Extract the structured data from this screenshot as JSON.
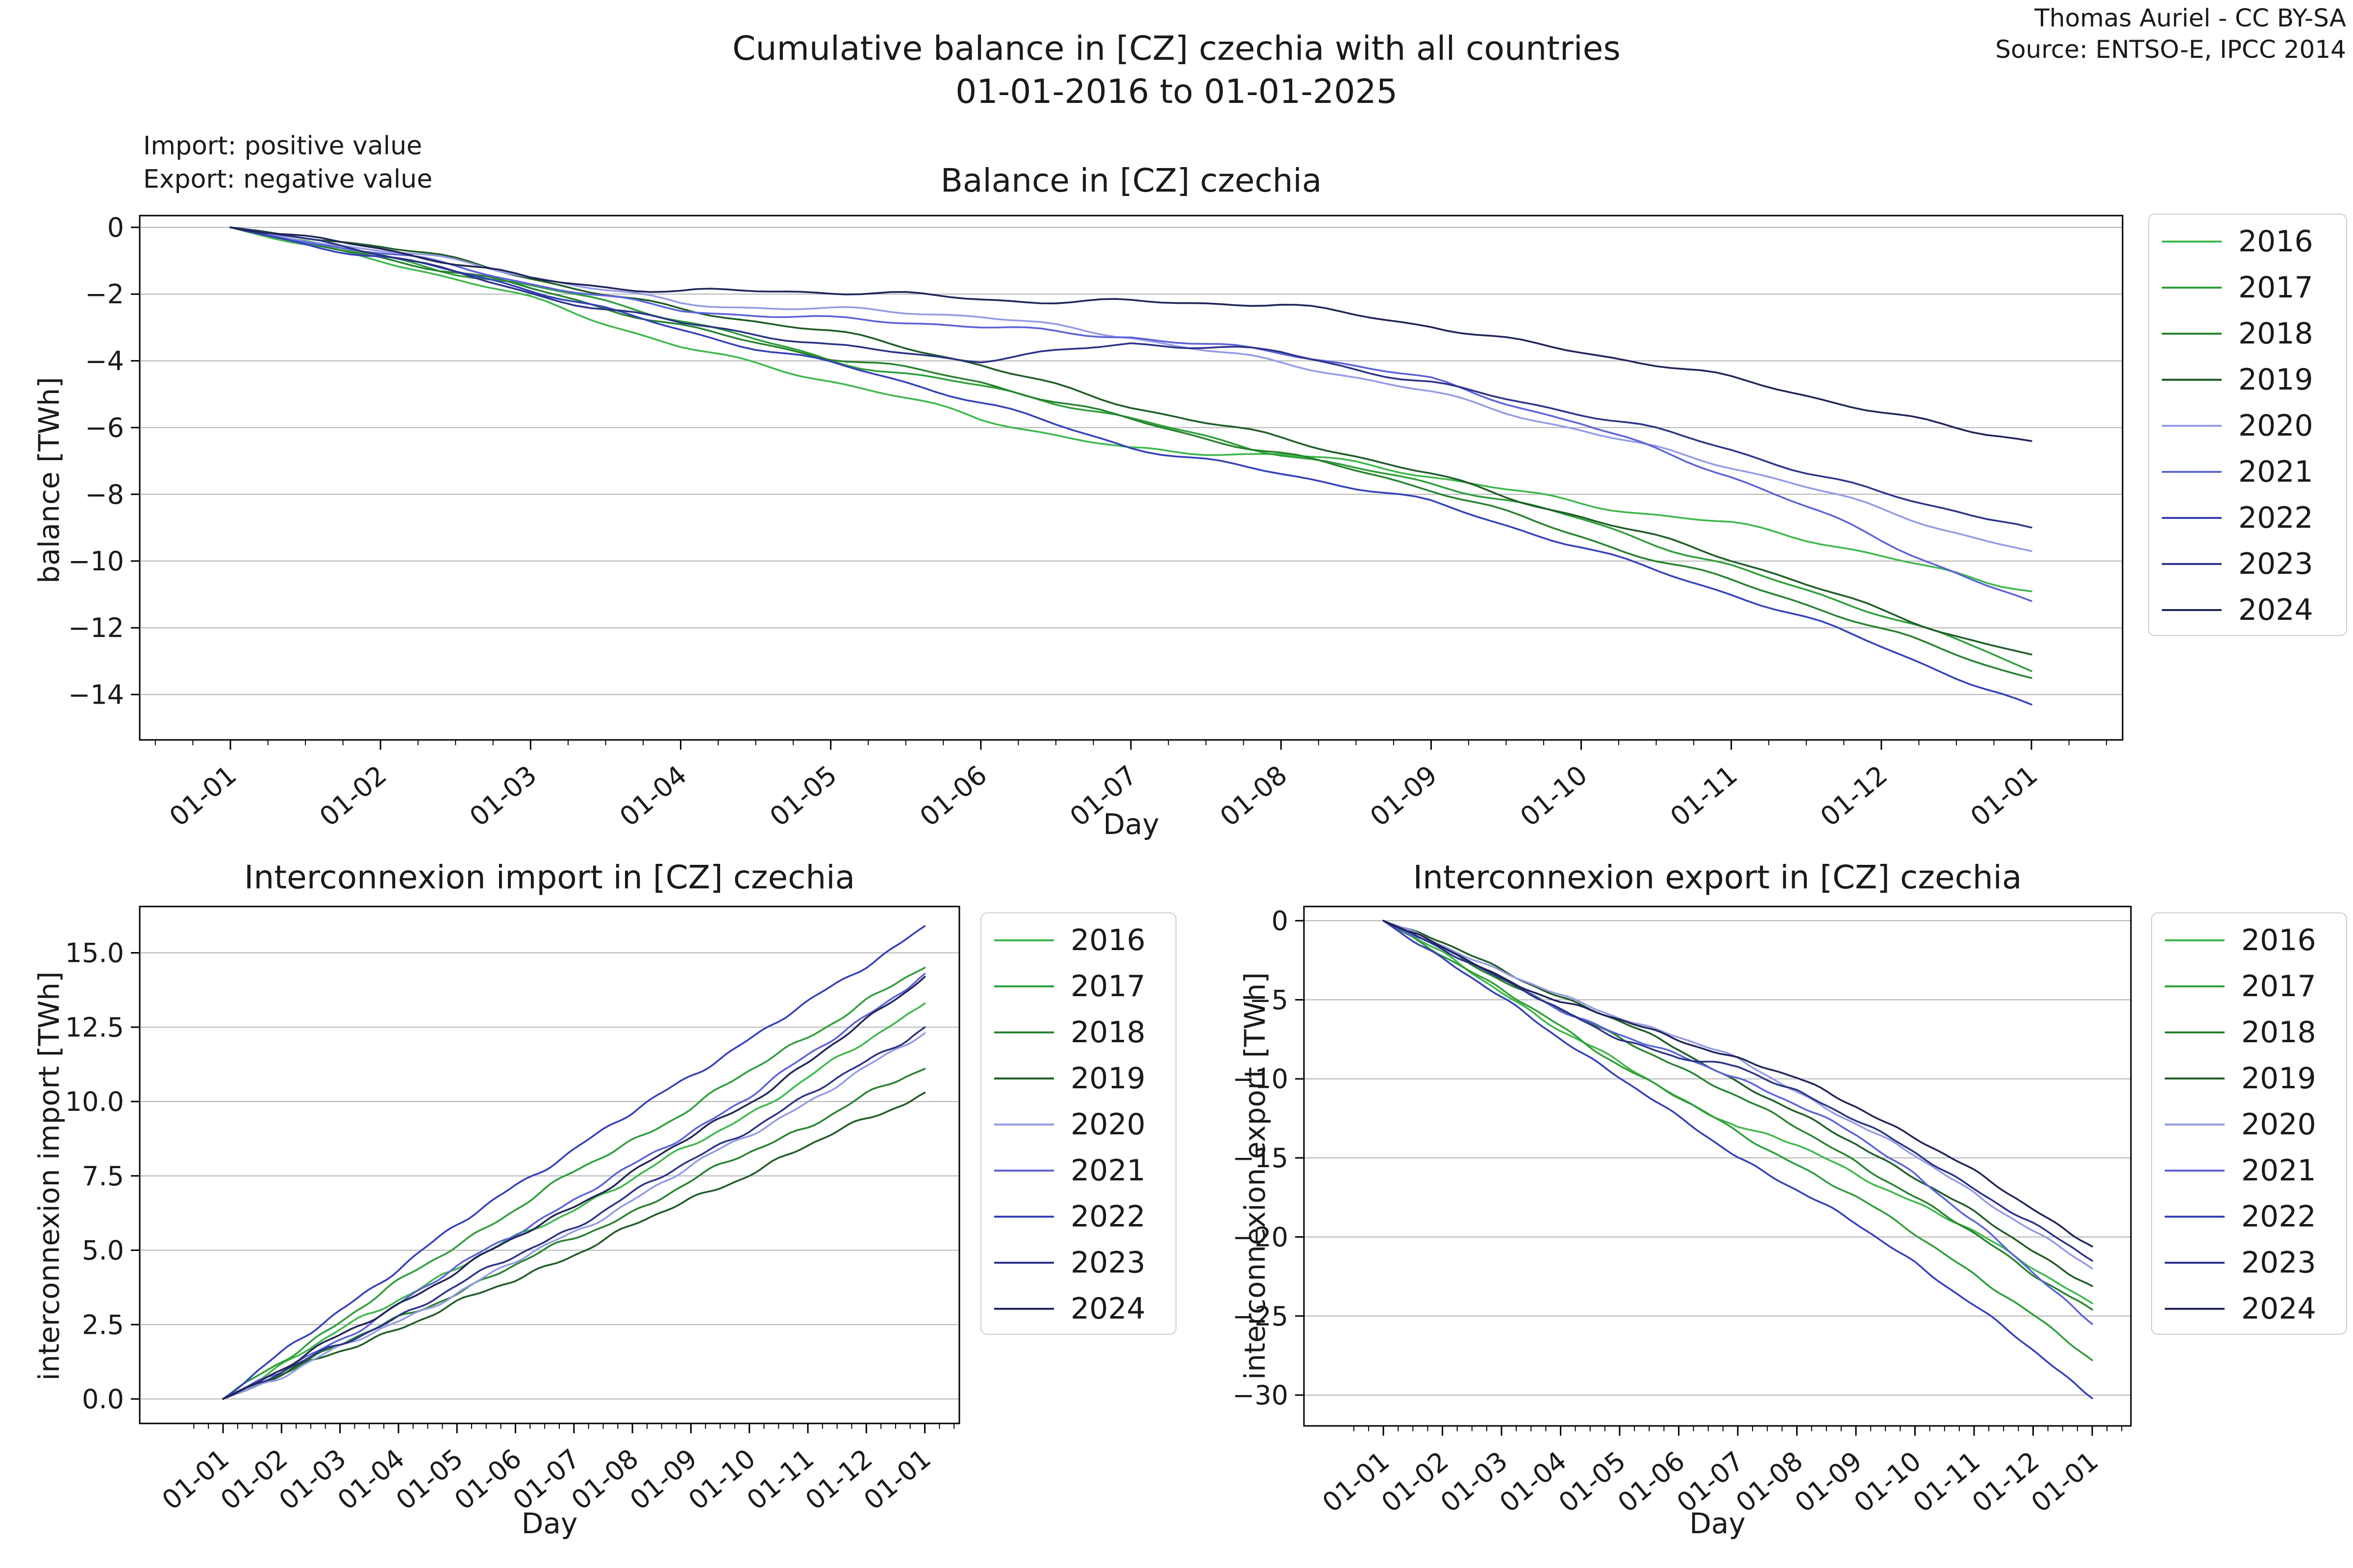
{
  "figure": {
    "suptitle_line1": "Cumulative balance in [CZ] czechia with all countries",
    "suptitle_line2": "01-01-2016 to 01-01-2025",
    "attribution_line1": "Thomas Auriel - CC BY-SA",
    "attribution_line2": "Source: ENTSO-E, IPCC 2014",
    "note_line1": "Import: positive value",
    "note_line2": "Export: negative value"
  },
  "legend_years": [
    "2016",
    "2017",
    "2018",
    "2019",
    "2020",
    "2021",
    "2022",
    "2023",
    "2024"
  ],
  "series_colors": {
    "2016": "#3eb84b",
    "2017": "#2f9e3a",
    "2018": "#27822f",
    "2019": "#1e5c26",
    "2020": "#949be4",
    "2021": "#5d63d8",
    "2022": "#3540bb",
    "2023": "#2b3387",
    "2024": "#202457"
  },
  "grid_color": "#b3b3b3",
  "spine_color": "#000000",
  "chart_data": [
    {
      "id": "balance",
      "type": "line",
      "title": "Balance in [CZ] czechia",
      "xlabel": "Day",
      "ylabel": "balance [TWh]",
      "x_tick_labels": [
        "01-01",
        "01-02",
        "01-03",
        "01-04",
        "01-05",
        "01-06",
        "01-07",
        "01-08",
        "01-09",
        "01-10",
        "01-11",
        "01-12",
        "01-01"
      ],
      "y_tick_values": [
        0,
        -2,
        -4,
        -6,
        -8,
        -10,
        -12,
        -14
      ],
      "y_tick_labels": [
        "0",
        "−2",
        "−4",
        "−6",
        "−8",
        "−10",
        "−12",
        "−14"
      ],
      "ylim": [
        -15.4,
        0.35
      ],
      "grid": "horizontal",
      "legend_position": "right",
      "x_unit": "months since 01-01",
      "series": [
        {
          "name": "2016",
          "values": [
            0,
            -1.0,
            -2.2,
            -3.5,
            -4.6,
            -5.8,
            -6.6,
            -6.8,
            -7.5,
            -8.2,
            -8.9,
            -9.9,
            -10.9
          ]
        },
        {
          "name": "2017",
          "values": [
            0,
            -0.8,
            -1.8,
            -2.8,
            -3.9,
            -4.8,
            -5.8,
            -6.7,
            -7.7,
            -8.8,
            -10.1,
            -11.6,
            -13.3
          ]
        },
        {
          "name": "2018",
          "values": [
            0,
            -0.9,
            -1.9,
            -2.9,
            -3.9,
            -4.7,
            -5.7,
            -6.8,
            -7.9,
            -9.2,
            -10.6,
            -12.1,
            -13.5
          ]
        },
        {
          "name": "2019",
          "values": [
            0,
            -0.6,
            -1.5,
            -2.4,
            -3.2,
            -4.1,
            -5.3,
            -6.4,
            -7.4,
            -8.6,
            -10.0,
            -11.5,
            -12.8
          ]
        },
        {
          "name": "2020",
          "values": [
            0,
            -0.7,
            -1.5,
            -2.2,
            -2.5,
            -2.7,
            -3.2,
            -4.1,
            -5.0,
            -6.0,
            -7.2,
            -8.5,
            -9.7
          ]
        },
        {
          "name": "2021",
          "values": [
            0,
            -0.8,
            -1.7,
            -2.4,
            -2.8,
            -3.0,
            -3.2,
            -3.8,
            -4.6,
            -5.8,
            -7.5,
            -9.4,
            -11.2
          ]
        },
        {
          "name": "2022",
          "values": [
            0,
            -0.9,
            -1.9,
            -3.0,
            -4.1,
            -5.3,
            -6.5,
            -7.4,
            -8.3,
            -9.5,
            -11.0,
            -12.6,
            -14.3
          ]
        },
        {
          "name": "2023",
          "values": [
            0,
            -0.8,
            -1.9,
            -2.9,
            -3.6,
            -3.9,
            -3.5,
            -3.8,
            -4.6,
            -5.6,
            -6.7,
            -7.9,
            -9.0
          ]
        },
        {
          "name": "2024",
          "values": [
            0,
            -0.7,
            -1.5,
            -1.9,
            -2.0,
            -2.1,
            -2.2,
            -2.4,
            -2.9,
            -3.7,
            -4.6,
            -5.5,
            -6.4
          ]
        }
      ]
    },
    {
      "id": "import",
      "type": "line",
      "title": "Interconnexion import in [CZ] czechia",
      "xlabel": "Day",
      "ylabel": "interconnexion import [TWh]",
      "x_tick_labels": [
        "01-01",
        "01-02",
        "01-03",
        "01-04",
        "01-05",
        "01-06",
        "01-07",
        "01-08",
        "01-09",
        "01-10",
        "01-11",
        "01-12",
        "01-01"
      ],
      "y_tick_values": [
        0,
        2.5,
        5.0,
        7.5,
        10.0,
        12.5,
        15.0
      ],
      "y_tick_labels": [
        "0.0",
        "2.5",
        "5.0",
        "7.5",
        "10.0",
        "12.5",
        "15.0"
      ],
      "ylim": [
        -0.8,
        16.5
      ],
      "grid": "horizontal",
      "legend_position": "right",
      "x_unit": "months since 01-01",
      "series": [
        {
          "name": "2016",
          "values": [
            0,
            1.1,
            2.3,
            3.4,
            4.4,
            5.4,
            6.4,
            7.4,
            8.5,
            9.6,
            10.8,
            12.0,
            13.3
          ]
        },
        {
          "name": "2017",
          "values": [
            0,
            1.3,
            2.6,
            3.9,
            5.2,
            6.4,
            7.6,
            8.7,
            9.8,
            11.0,
            12.2,
            13.4,
            14.5
          ]
        },
        {
          "name": "2018",
          "values": [
            0,
            0.9,
            1.8,
            2.7,
            3.6,
            4.5,
            5.4,
            6.3,
            7.3,
            8.3,
            9.2,
            10.2,
            11.1
          ]
        },
        {
          "name": "2019",
          "values": [
            0,
            0.8,
            1.6,
            2.4,
            3.2,
            4.0,
            4.9,
            5.8,
            6.7,
            7.6,
            8.5,
            9.4,
            10.3
          ]
        },
        {
          "name": "2020",
          "values": [
            0,
            0.8,
            1.7,
            2.6,
            3.6,
            4.6,
            5.6,
            6.7,
            7.8,
            8.9,
            10.0,
            11.1,
            12.3
          ]
        },
        {
          "name": "2021",
          "values": [
            0,
            0.9,
            2.0,
            3.2,
            4.4,
            5.6,
            6.7,
            7.8,
            9.0,
            10.2,
            11.5,
            12.9,
            14.3
          ]
        },
        {
          "name": "2022",
          "values": [
            0,
            1.5,
            3.0,
            4.4,
            5.8,
            7.2,
            8.4,
            9.6,
            10.9,
            12.1,
            13.3,
            14.6,
            15.9
          ]
        },
        {
          "name": "2023",
          "values": [
            0,
            0.9,
            1.8,
            2.8,
            3.8,
            4.8,
            5.8,
            6.9,
            8.0,
            9.1,
            10.2,
            11.3,
            12.5
          ]
        },
        {
          "name": "2024",
          "values": [
            0,
            1.0,
            2.1,
            3.2,
            4.3,
            5.4,
            6.5,
            7.6,
            8.8,
            10.0,
            11.3,
            12.7,
            14.2
          ]
        }
      ]
    },
    {
      "id": "export",
      "type": "line",
      "title": "Interconnexion export in [CZ] czechia",
      "xlabel": "Day",
      "ylabel": "interconnexion export [TWh]",
      "x_tick_labels": [
        "01-01",
        "01-02",
        "01-03",
        "01-04",
        "01-05",
        "01-06",
        "01-07",
        "01-08",
        "01-09",
        "01-10",
        "01-11",
        "01-12",
        "01-01"
      ],
      "y_tick_values": [
        0,
        -5,
        -10,
        -15,
        -20,
        -25,
        -30
      ],
      "y_tick_labels": [
        "0",
        "−5",
        "−10",
        "−15",
        "−20",
        "−25",
        "−30"
      ],
      "ylim": [
        -31.9,
        0.9
      ],
      "grid": "horizontal",
      "legend_position": "right",
      "x_unit": "months since 01-01",
      "series": [
        {
          "name": "2016",
          "values": [
            0,
            -2.1,
            -4.5,
            -6.9,
            -9.0,
            -11.2,
            -13.0,
            -14.2,
            -16.0,
            -17.8,
            -19.7,
            -21.9,
            -24.2
          ]
        },
        {
          "name": "2017",
          "values": [
            0,
            -2.1,
            -4.4,
            -6.7,
            -9.1,
            -11.2,
            -13.4,
            -15.4,
            -17.5,
            -19.8,
            -22.3,
            -25.0,
            -27.8
          ]
        },
        {
          "name": "2018",
          "values": [
            0,
            -1.8,
            -3.7,
            -5.6,
            -7.5,
            -9.2,
            -11.1,
            -13.1,
            -15.2,
            -17.5,
            -19.8,
            -22.3,
            -24.6
          ]
        },
        {
          "name": "2019",
          "values": [
            0,
            -1.4,
            -3.1,
            -4.8,
            -6.4,
            -8.1,
            -10.2,
            -12.2,
            -14.1,
            -16.2,
            -18.5,
            -20.9,
            -23.1
          ]
        },
        {
          "name": "2020",
          "values": [
            0,
            -1.5,
            -3.2,
            -4.8,
            -6.1,
            -7.3,
            -8.8,
            -10.8,
            -12.8,
            -14.9,
            -17.2,
            -19.6,
            -22.0
          ]
        },
        {
          "name": "2021",
          "values": [
            0,
            -1.7,
            -3.7,
            -5.6,
            -7.2,
            -8.6,
            -9.9,
            -11.6,
            -13.6,
            -16.0,
            -19.0,
            -22.3,
            -25.5
          ]
        },
        {
          "name": "2022",
          "values": [
            0,
            -2.4,
            -4.9,
            -7.4,
            -9.9,
            -12.5,
            -14.9,
            -17.0,
            -19.2,
            -21.6,
            -24.3,
            -27.2,
            -30.2
          ]
        },
        {
          "name": "2023",
          "values": [
            0,
            -1.7,
            -3.7,
            -5.7,
            -7.4,
            -8.7,
            -9.3,
            -10.7,
            -12.6,
            -14.7,
            -16.9,
            -19.2,
            -21.5
          ]
        },
        {
          "name": "2024",
          "values": [
            0,
            -1.7,
            -3.6,
            -5.1,
            -6.3,
            -7.5,
            -8.7,
            -10.0,
            -11.7,
            -13.7,
            -15.9,
            -18.2,
            -20.6
          ]
        }
      ]
    }
  ]
}
